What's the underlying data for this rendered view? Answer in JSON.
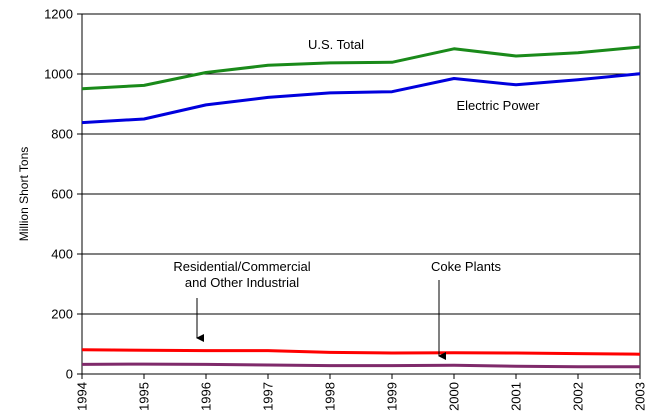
{
  "chart_data": {
    "type": "line",
    "title": "",
    "xlabel": "",
    "ylabel": "Million Short Tons",
    "x": [
      "1994",
      "1995",
      "1996",
      "1997",
      "1998",
      "1999",
      "2000",
      "2001",
      "2002",
      "2003"
    ],
    "ylim": [
      0,
      1200
    ],
    "yticks": [
      "0",
      "200",
      "400",
      "600",
      "800",
      "1000",
      "1200"
    ],
    "grid": "horizontal",
    "series": [
      {
        "name": "U.S. Total",
        "color": "#1a8a1a",
        "values": [
          951,
          962,
          1005,
          1029,
          1037,
          1039,
          1084,
          1060,
          1071,
          1090
        ]
      },
      {
        "name": "Electric Power",
        "color": "#0000dd",
        "values": [
          838,
          850,
          897,
          922,
          937,
          941,
          985,
          964,
          981,
          1001
        ]
      },
      {
        "name": "Residential/Commercial and Other Industrial",
        "color": "#ff0000",
        "values": [
          81,
          79,
          78,
          78,
          72,
          70,
          71,
          70,
          68,
          66
        ]
      },
      {
        "name": "Coke Plants",
        "color": "#7f2a6a",
        "values": [
          32,
          33,
          32,
          30,
          28,
          28,
          29,
          26,
          24,
          24
        ]
      }
    ],
    "annotations": [
      {
        "lines": [
          "U.S. Total"
        ],
        "arrow": false
      },
      {
        "lines": [
          "Electric Power"
        ],
        "arrow": false
      },
      {
        "lines": [
          "Residential/Commercial",
          "and Other Industrial"
        ],
        "arrow": true
      },
      {
        "lines": [
          "Coke Plants"
        ],
        "arrow": true
      }
    ]
  }
}
